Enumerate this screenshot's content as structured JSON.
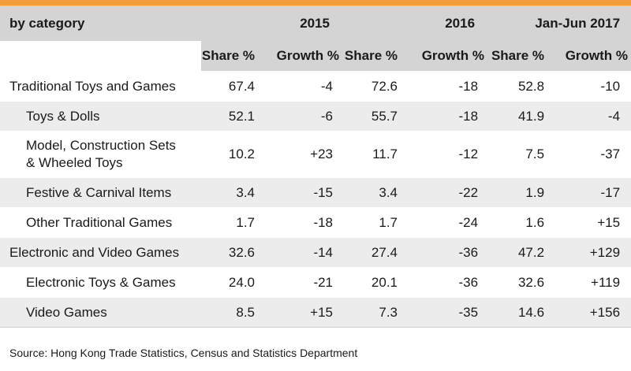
{
  "header": {
    "category_label": "by category",
    "years": [
      "2015",
      "2016",
      "Jan-Jun 2017"
    ],
    "share_label": "Share %",
    "growth_label": "Growth %"
  },
  "rows": [
    {
      "name": "Traditional Toys and Games",
      "level": "main",
      "values": [
        "67.4",
        "-4",
        "72.6",
        "-18",
        "52.8",
        "-10"
      ]
    },
    {
      "name": "Toys & Dolls",
      "level": "sub",
      "values": [
        "52.1",
        "-6",
        "55.7",
        "-18",
        "41.9",
        "-4"
      ]
    },
    {
      "name": "Model, Construction Sets\n& Wheeled Toys",
      "level": "sub",
      "values": [
        "10.2",
        "+23",
        "11.7",
        "-12",
        "7.5",
        "-37"
      ]
    },
    {
      "name": "Festive & Carnival Items",
      "level": "sub",
      "values": [
        "3.4",
        "-15",
        "3.4",
        "-22",
        "1.9",
        "-17"
      ]
    },
    {
      "name": "Other Traditional Games",
      "level": "sub",
      "values": [
        "1.7",
        "-18",
        "1.7",
        "-24",
        "1.6",
        "+15"
      ]
    },
    {
      "name": "Electronic and Video Games",
      "level": "main",
      "values": [
        "32.6",
        "-14",
        "27.4",
        "-36",
        "47.2",
        "+129"
      ]
    },
    {
      "name": "Electronic Toys & Games",
      "level": "sub",
      "values": [
        "24.0",
        "-21",
        "20.1",
        "-36",
        "32.6",
        "+119"
      ]
    },
    {
      "name": "Video Games",
      "level": "sub",
      "values": [
        "8.5",
        "+15",
        "7.3",
        "-35",
        "14.6",
        "+156"
      ]
    }
  ],
  "source": "Source: Hong Kong Trade Statistics, Census and Statistics Department",
  "colors": {
    "accent_bar": "#f39c3b",
    "header_bg": "#d4d4d4",
    "shaded_row_bg": "#ececec"
  }
}
